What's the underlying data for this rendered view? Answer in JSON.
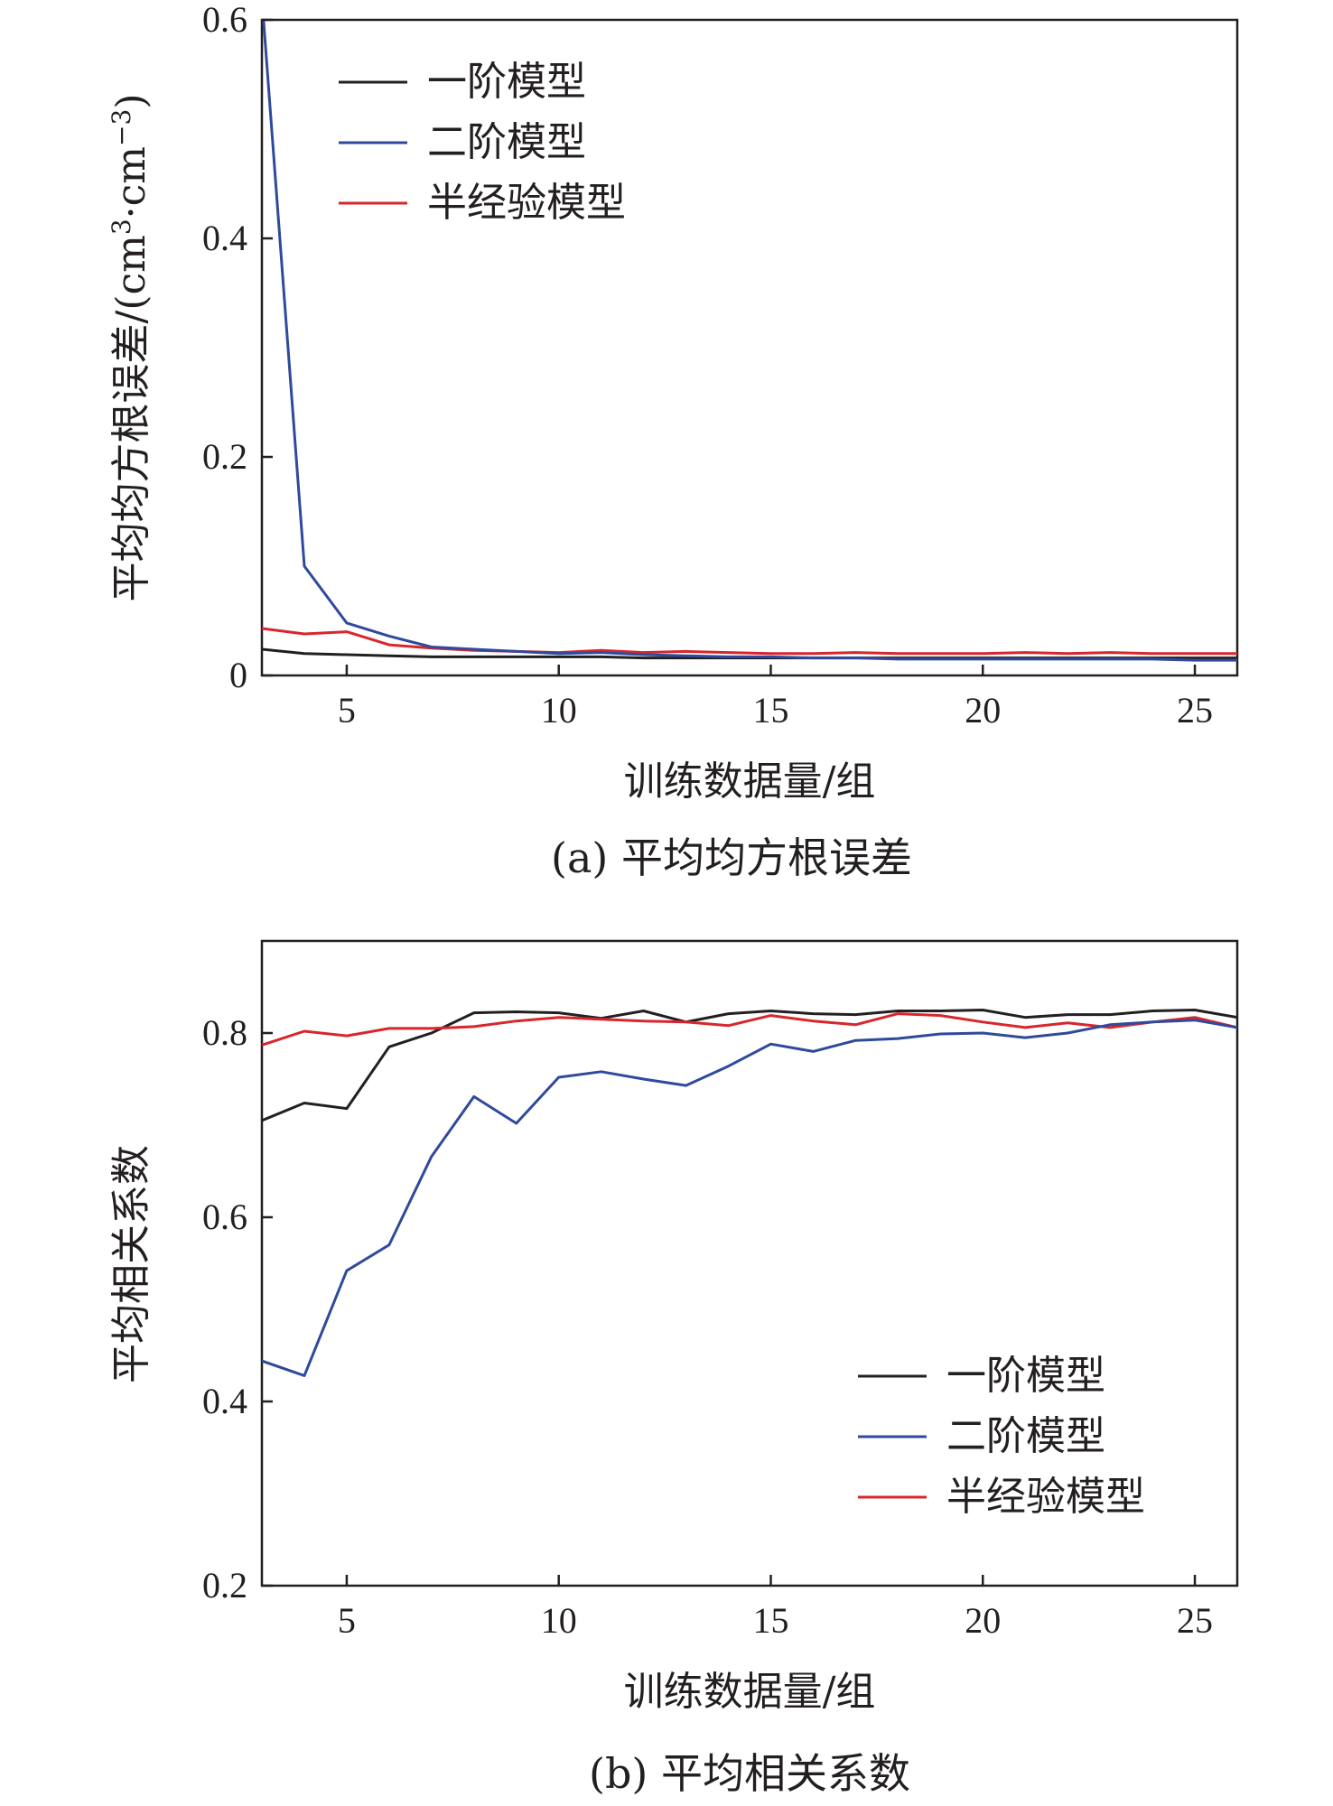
{
  "chart_data": [
    {
      "type": "line",
      "caption": "(a) 平均均方根误差",
      "xlabel": "训练数据量/组",
      "ylabel": "平均均方根误差/(cm³·cm⁻³)",
      "xlim": [
        3,
        26
      ],
      "ylim": [
        0,
        0.6
      ],
      "xticks": [
        5,
        10,
        15,
        20,
        25
      ],
      "yticks": [
        0,
        0.2,
        0.4,
        0.6
      ],
      "ytick_labels": [
        "0",
        "0.2",
        "0.4",
        "0.6"
      ],
      "legend_position": "top-left",
      "x": [
        3,
        4,
        5,
        6,
        7,
        8,
        9,
        10,
        11,
        12,
        13,
        14,
        15,
        16,
        17,
        18,
        19,
        20,
        21,
        22,
        23,
        24,
        25,
        26
      ],
      "series": [
        {
          "name": "一阶模型",
          "color": "#231f20",
          "values": [
            0.024,
            0.02,
            0.019,
            0.018,
            0.017,
            0.017,
            0.017,
            0.017,
            0.017,
            0.016,
            0.016,
            0.016,
            0.016,
            0.016,
            0.016,
            0.016,
            0.016,
            0.016,
            0.016,
            0.016,
            0.016,
            0.016,
            0.016,
            0.016
          ]
        },
        {
          "name": "二阶模型",
          "color": "#2f4a9c",
          "values": [
            0.62,
            0.1,
            0.048,
            0.036,
            0.026,
            0.024,
            0.022,
            0.02,
            0.021,
            0.019,
            0.018,
            0.017,
            0.017,
            0.016,
            0.016,
            0.015,
            0.015,
            0.015,
            0.015,
            0.015,
            0.015,
            0.015,
            0.014,
            0.014
          ]
        },
        {
          "name": "半经验模型",
          "color": "#d7262c",
          "values": [
            0.043,
            0.038,
            0.04,
            0.028,
            0.025,
            0.023,
            0.022,
            0.021,
            0.023,
            0.021,
            0.022,
            0.021,
            0.02,
            0.02,
            0.021,
            0.02,
            0.02,
            0.02,
            0.021,
            0.02,
            0.021,
            0.02,
            0.02,
            0.02
          ]
        }
      ]
    },
    {
      "type": "line",
      "caption": "(b) 平均相关系数",
      "xlabel": "训练数据量/组",
      "ylabel": "平均相关系数",
      "xlim": [
        3,
        26
      ],
      "ylim": [
        0.2,
        0.9
      ],
      "xticks": [
        5,
        10,
        15,
        20,
        25
      ],
      "yticks": [
        0.2,
        0.4,
        0.6,
        0.8
      ],
      "ytick_labels": [
        "0.2",
        "0.4",
        "0.6",
        "0.8"
      ],
      "legend_position": "bottom-right",
      "x": [
        3,
        4,
        5,
        6,
        7,
        8,
        9,
        10,
        11,
        12,
        13,
        14,
        15,
        16,
        17,
        18,
        19,
        20,
        21,
        22,
        23,
        24,
        25,
        26
      ],
      "series": [
        {
          "name": "一阶模型",
          "color": "#231f20",
          "values": [
            0.705,
            0.724,
            0.718,
            0.785,
            0.8,
            0.822,
            0.823,
            0.822,
            0.816,
            0.824,
            0.812,
            0.821,
            0.824,
            0.821,
            0.82,
            0.824,
            0.824,
            0.825,
            0.817,
            0.82,
            0.82,
            0.824,
            0.825,
            0.817
          ]
        },
        {
          "name": "二阶模型",
          "color": "#2f4a9c",
          "values": [
            0.444,
            0.428,
            0.542,
            0.57,
            0.666,
            0.731,
            0.702,
            0.752,
            0.758,
            0.75,
            0.743,
            0.764,
            0.788,
            0.78,
            0.792,
            0.794,
            0.799,
            0.8,
            0.795,
            0.8,
            0.809,
            0.812,
            0.814,
            0.806
          ]
        },
        {
          "name": "半经验模型",
          "color": "#d7262c",
          "values": [
            0.787,
            0.802,
            0.797,
            0.805,
            0.805,
            0.807,
            0.813,
            0.817,
            0.815,
            0.813,
            0.812,
            0.808,
            0.819,
            0.813,
            0.809,
            0.821,
            0.819,
            0.812,
            0.806,
            0.811,
            0.806,
            0.812,
            0.817,
            0.806
          ]
        }
      ]
    }
  ]
}
